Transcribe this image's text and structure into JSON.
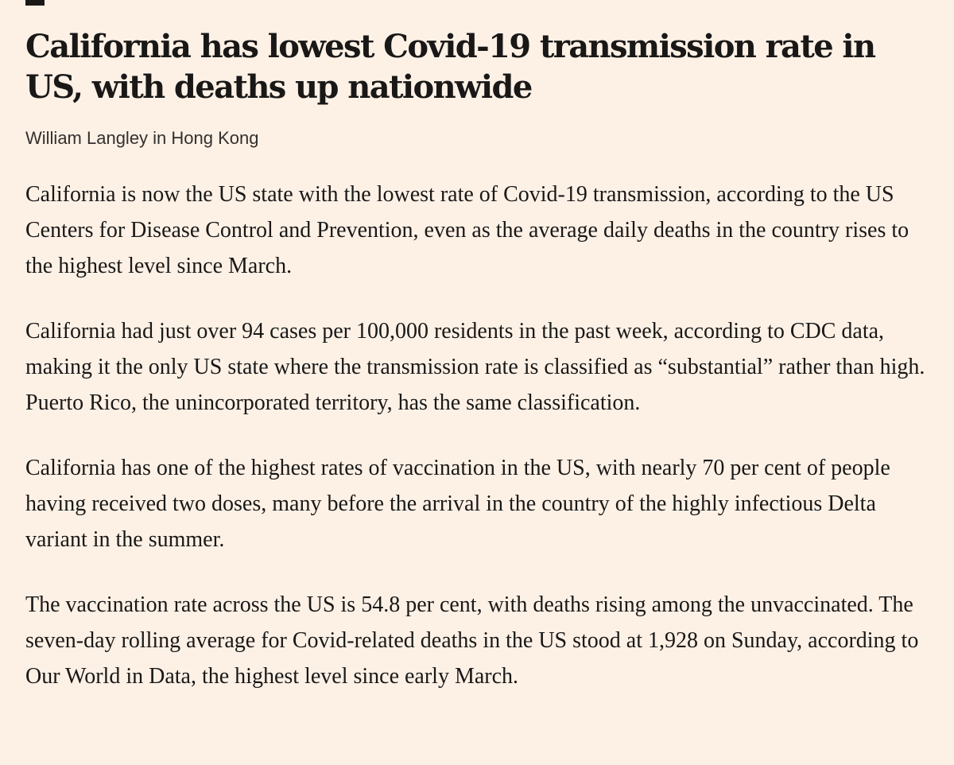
{
  "article": {
    "headline": "California has lowest Covid-19 transmission rate in US, with deaths up nationwide",
    "byline": "William Langley in Hong Kong",
    "paragraphs": [
      "California is now the US state with the lowest rate of Covid-19 transmission, according to the US Centers for Disease Control and Prevention, even as the average daily deaths in the country rises to the highest level since March.",
      "California had just over 94 cases per 100,000 residents in the past week, according to CDC data, making it the only US state where the transmission rate is classified as “substantial” rather than high. Puerto Rico, the unincorporated territory, has the same classification.",
      "California has one of the highest rates of vaccination in the US, with nearly 70 per cent of people having received two doses, many before the arrival in the country of the highly infectious Delta variant in the summer.",
      "The vaccination rate across the US is 54.8 per cent, with deaths rising among the unvaccinated. The seven-day rolling average for Covid-related deaths in the US stood at 1,928 on Sunday, according to Our World in Data, the highest level since early March."
    ]
  },
  "colors": {
    "background": "#fdf1e6",
    "text": "#1a1817",
    "byline": "#33302e"
  }
}
